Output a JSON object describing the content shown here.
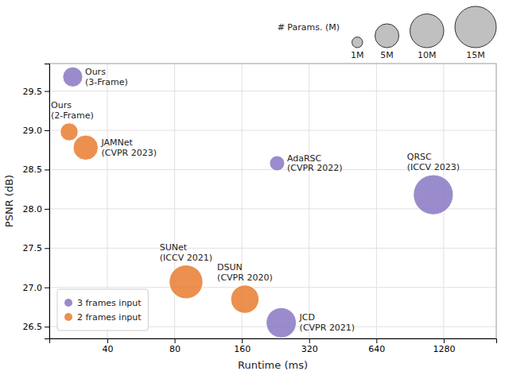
{
  "chart_data": {
    "type": "scatter",
    "xlabel": "Runtime (ms)",
    "ylabel": "PSNR (dB)",
    "log": "x",
    "grid": true,
    "legend": "lower left",
    "xlim": [
      22,
      2200
    ],
    "xticks": [
      40,
      80,
      160,
      320,
      640,
      1280
    ],
    "ylim": [
      26.35,
      29.85
    ],
    "yticks": [
      26.5,
      {
        "value": 27.0,
        "label": "27.0"
      },
      27.5,
      {
        "value": 28.0,
        "label": "28.0"
      },
      28.5,
      {
        "value": 29.0,
        "label": "29.0"
      },
      29.5
    ],
    "series": [
      {
        "name": "3 frames input",
        "color": "#8878c3",
        "x": [
          28,
          230,
          1150,
          240
        ],
        "values": [
          29.68,
          28.58,
          28.18,
          26.55
        ],
        "sizes": [
          3.5,
          2.0,
          14.0,
          8.0
        ],
        "labels": [
          "Ours\n(3-Frame)",
          "AdaRSC\n(CVPR 2022)",
          "QRSC\n(ICCV 2023)",
          "JCD\n(CVPR 2021)"
        ]
      },
      {
        "name": "2 frames input",
        "color": "#e87d30",
        "x": [
          27,
          32,
          90,
          165
        ],
        "values": [
          28.98,
          28.78,
          27.07,
          26.85
        ],
        "sizes": [
          2.8,
          5.5,
          10.0,
          7.0
        ],
        "labels": [
          "Ours\n(2-Frame)",
          "JAMNet\n(CVPR 2023)",
          "SUNet\n(ICCV 2021)",
          "DSUN\n(CVPR 2020)"
        ]
      }
    ],
    "size_legend": {
      "title": "# Params. (M)",
      "color": "#c0c0c0",
      "values": [
        1.0,
        5.0,
        10.0,
        15.0
      ],
      "labels": [
        "1M",
        "5M",
        "10M",
        "15M"
      ]
    }
  }
}
